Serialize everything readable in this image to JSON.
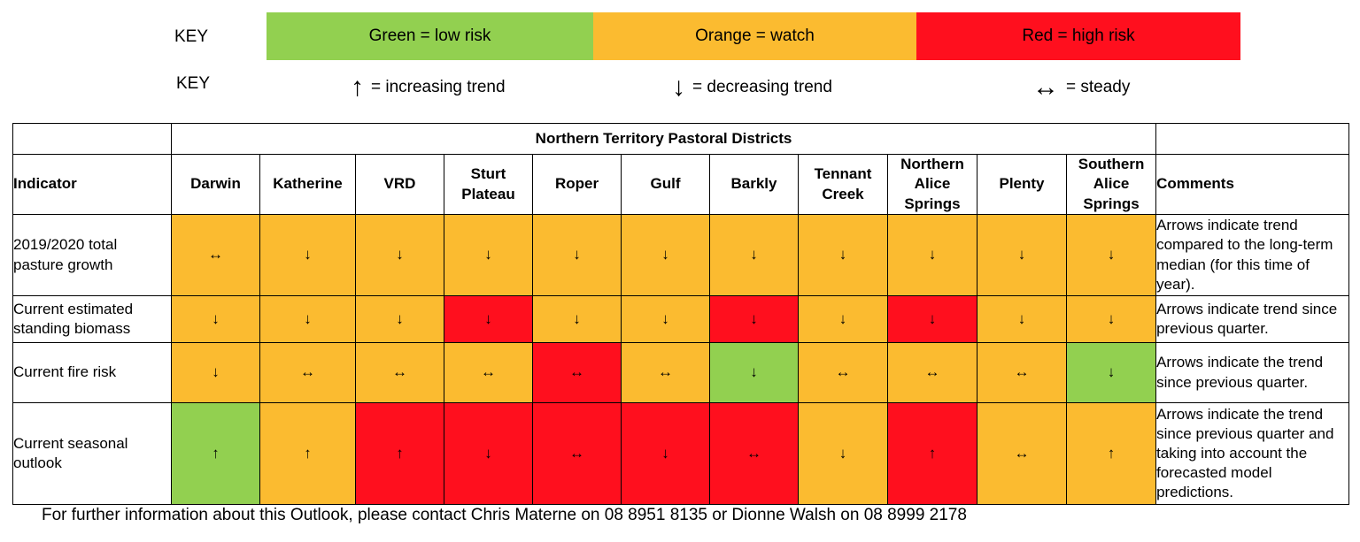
{
  "key": {
    "label_colour": "KEY",
    "label_trend": "KEY",
    "colours": [
      {
        "text": "Green = low risk",
        "color": "#92d050"
      },
      {
        "text": "Orange = watch",
        "color": "#fbbb30"
      },
      {
        "text": "Red = high risk",
        "color": "#ff0f1e"
      }
    ],
    "trends": [
      {
        "symbol": "↑",
        "text": "= increasing trend"
      },
      {
        "symbol": "↓",
        "text": "= decreasing trend"
      },
      {
        "symbol": "↔",
        "text": "= steady"
      }
    ]
  },
  "table": {
    "title": "Northern Territory Pastoral Districts",
    "indicator_header": "Indicator",
    "comments_header": "Comments",
    "districts": [
      "Darwin",
      "Katherine",
      "VRD",
      "Sturt Plateau",
      "Roper",
      "Gulf",
      "Barkly",
      "Tennant Creek",
      "Northern Alice Springs",
      "Plenty",
      "Southern Alice Springs"
    ],
    "palette": {
      "green": "#92d050",
      "orange": "#fbbb30",
      "red": "#ff0f1e"
    },
    "rows": [
      {
        "indicator": "2019/2020 total pasture growth",
        "cells": [
          {
            "s": "↔",
            "c": "orange"
          },
          {
            "s": "↓",
            "c": "orange"
          },
          {
            "s": "↓",
            "c": "orange"
          },
          {
            "s": "↓",
            "c": "orange"
          },
          {
            "s": "↓",
            "c": "orange"
          },
          {
            "s": "↓",
            "c": "orange"
          },
          {
            "s": "↓",
            "c": "orange"
          },
          {
            "s": "↓",
            "c": "orange"
          },
          {
            "s": "↓",
            "c": "orange"
          },
          {
            "s": "↓",
            "c": "orange"
          },
          {
            "s": "↓",
            "c": "orange"
          }
        ],
        "comment": "Arrows indicate trend compared to the long-term median (for this time of year)."
      },
      {
        "indicator": "Current estimated standing biomass",
        "cells": [
          {
            "s": "↓",
            "c": "orange"
          },
          {
            "s": "↓",
            "c": "orange"
          },
          {
            "s": "↓",
            "c": "orange"
          },
          {
            "s": "↓",
            "c": "red"
          },
          {
            "s": "↓",
            "c": "orange"
          },
          {
            "s": "↓",
            "c": "orange"
          },
          {
            "s": "↓",
            "c": "red"
          },
          {
            "s": "↓",
            "c": "orange"
          },
          {
            "s": "↓",
            "c": "red"
          },
          {
            "s": "↓",
            "c": "orange"
          },
          {
            "s": "↓",
            "c": "orange"
          }
        ],
        "comment": "Arrows indicate trend since previous quarter."
      },
      {
        "indicator": "Current fire risk",
        "cells": [
          {
            "s": "↓",
            "c": "orange"
          },
          {
            "s": "↔",
            "c": "orange"
          },
          {
            "s": "↔",
            "c": "orange"
          },
          {
            "s": "↔",
            "c": "orange"
          },
          {
            "s": "↔",
            "c": "red"
          },
          {
            "s": "↔",
            "c": "orange"
          },
          {
            "s": "↓",
            "c": "green"
          },
          {
            "s": "↔",
            "c": "orange"
          },
          {
            "s": "↔",
            "c": "orange"
          },
          {
            "s": "↔",
            "c": "orange"
          },
          {
            "s": "↓",
            "c": "green"
          }
        ],
        "comment": "Arrows indicate the trend since previous quarter."
      },
      {
        "indicator": "Current seasonal outlook",
        "cells": [
          {
            "s": "↑",
            "c": "green"
          },
          {
            "s": "↑",
            "c": "orange"
          },
          {
            "s": "↑",
            "c": "red"
          },
          {
            "s": "↓",
            "c": "red"
          },
          {
            "s": "↔",
            "c": "red"
          },
          {
            "s": "↓",
            "c": "red"
          },
          {
            "s": "↔",
            "c": "red"
          },
          {
            "s": "↓",
            "c": "orange"
          },
          {
            "s": "↑",
            "c": "red"
          },
          {
            "s": "↔",
            "c": "orange"
          },
          {
            "s": "↑",
            "c": "orange"
          }
        ],
        "comment": "Arrows indicate the trend since previous quarter and taking into account the forecasted model predictions."
      }
    ]
  },
  "footer": "For further information about this Outlook, please contact Chris Materne on 08 8951 8135 or Dionne Walsh on 08 8999 2178"
}
